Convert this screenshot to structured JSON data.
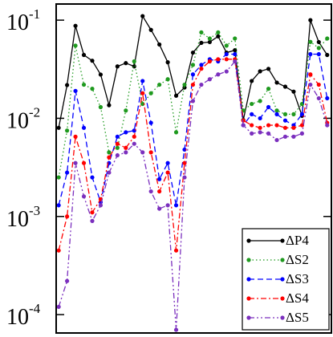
{
  "chart_data": {
    "type": "line",
    "y_scale": "log",
    "legend_position": "lower right",
    "x": [
      0,
      1,
      2,
      3,
      4,
      5,
      6,
      7,
      8,
      9,
      10,
      11,
      12,
      13,
      14,
      15,
      16,
      17,
      18,
      19,
      20,
      21,
      22,
      23,
      24,
      25,
      26,
      27,
      28,
      29,
      30,
      31,
      32
    ],
    "xlim": [
      -0.3,
      32.5
    ],
    "ylim": [
      6.5e-05,
      0.146
    ],
    "yticks": [
      {
        "value": 0.1,
        "label": "10",
        "exponent": "-1"
      },
      {
        "value": 0.01,
        "label": "10",
        "exponent": "-2"
      },
      {
        "value": 0.001,
        "label": "10",
        "exponent": "-3"
      },
      {
        "value": 0.0001,
        "label": "10",
        "exponent": "-4"
      }
    ],
    "series": [
      {
        "name": "ΔP4",
        "color": "#000000",
        "dash": "solid",
        "values": [
          0.008,
          0.0218,
          0.0875,
          0.0442,
          0.0386,
          0.0279,
          0.0136,
          0.0338,
          0.0365,
          0.0338,
          0.11,
          0.0796,
          0.0565,
          0.0372,
          0.017,
          0.0206,
          0.0467,
          0.0587,
          0.0598,
          0.0684,
          0.0467,
          0.0494,
          0.0096,
          0.024,
          0.0301,
          0.0319,
          0.0231,
          0.021,
          0.0187,
          0.0106,
          0.1,
          0.0598,
          0.0442
        ]
      },
      {
        "name": "ΔS2",
        "color": "#1f9a1f",
        "dash": "dotted",
        "values": [
          0.0025,
          0.0075,
          0.055,
          0.022,
          0.02,
          0.013,
          0.0045,
          0.005,
          0.012,
          0.038,
          0.014,
          0.018,
          0.022,
          0.025,
          0.0072,
          0.022,
          0.035,
          0.075,
          0.065,
          0.075,
          0.055,
          0.065,
          0.012,
          0.014,
          0.015,
          0.02,
          0.012,
          0.011,
          0.011,
          0.014,
          0.06,
          0.052,
          0.065
        ]
      },
      {
        "name": "ΔS3",
        "color": "#0000ff",
        "dash": "dashed",
        "values": [
          0.0013,
          0.0028,
          0.019,
          0.008,
          0.0025,
          0.0014,
          0.0035,
          0.0065,
          0.0072,
          0.0075,
          0.024,
          0.009,
          0.0024,
          0.0035,
          0.0013,
          0.0048,
          0.028,
          0.035,
          0.04,
          0.038,
          0.045,
          0.045,
          0.0085,
          0.011,
          0.01,
          0.013,
          0.011,
          0.0095,
          0.0085,
          0.011,
          0.045,
          0.045,
          0.016
        ]
      },
      {
        "name": "ΔS4",
        "color": "#ff0000",
        "dash": "dashdot",
        "values": [
          0.00045,
          0.001,
          0.0065,
          0.0035,
          0.0011,
          0.0015,
          0.004,
          0.0055,
          0.005,
          0.0065,
          0.018,
          0.0045,
          0.0018,
          0.0028,
          0.00045,
          0.0035,
          0.022,
          0.032,
          0.038,
          0.04,
          0.04,
          0.04,
          0.0095,
          0.0085,
          0.008,
          0.0085,
          0.0085,
          0.008,
          0.008,
          0.0085,
          0.028,
          0.022,
          0.009
        ]
      },
      {
        "name": "ΔS5",
        "color": "#7b2fbe",
        "dash": "dashdotdot",
        "values": [
          0.00012,
          0.00022,
          0.0035,
          0.0016,
          0.0009,
          0.0013,
          0.0028,
          0.0042,
          0.0045,
          0.0055,
          0.0045,
          0.0018,
          0.0012,
          0.0013,
          7e-05,
          0.0025,
          0.015,
          0.022,
          0.025,
          0.028,
          0.03,
          0.038,
          0.0085,
          0.007,
          0.0072,
          0.007,
          0.006,
          0.0065,
          0.0065,
          0.007,
          0.022,
          0.016,
          0.0085
        ]
      }
    ]
  }
}
